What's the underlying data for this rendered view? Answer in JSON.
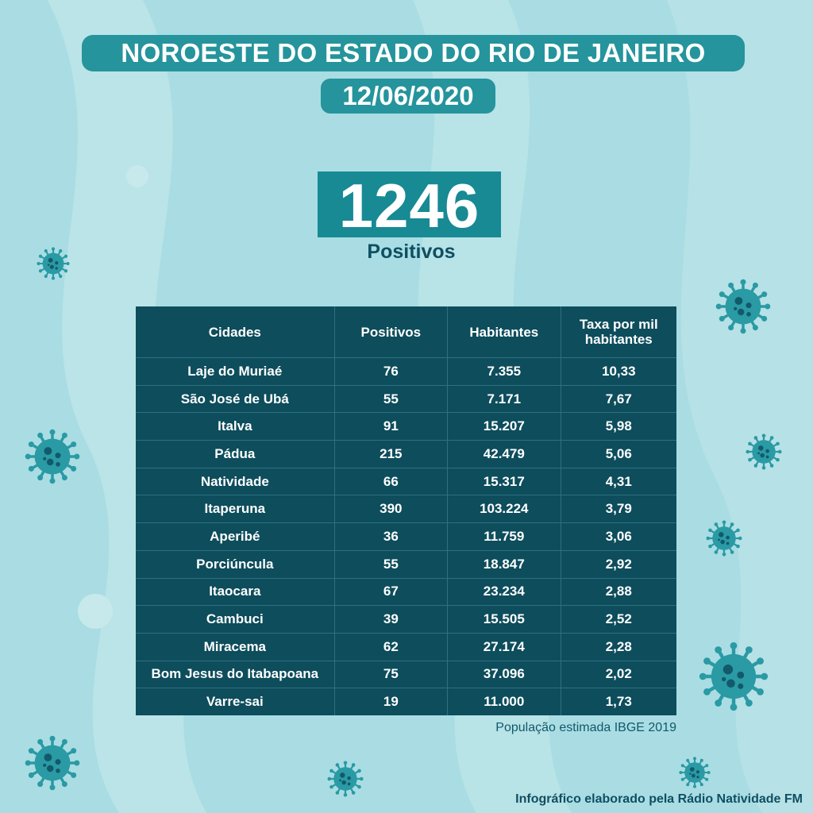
{
  "header": {
    "title": "NOROESTE DO ESTADO DO RIO DE JANEIRO",
    "date": "12/06/2020"
  },
  "summary": {
    "total": "1246",
    "label": "Positivos"
  },
  "table": {
    "headers": [
      "Cidades",
      "Positivos",
      "Habitantes",
      "Taxa por mil habitantes"
    ],
    "rows": [
      [
        "Laje do Muriaé",
        "76",
        "7.355",
        "10,33"
      ],
      [
        "São José de Ubá",
        "55",
        "7.171",
        "7,67"
      ],
      [
        "Italva",
        "91",
        "15.207",
        "5,98"
      ],
      [
        "Pádua",
        "215",
        "42.479",
        "5,06"
      ],
      [
        "Natividade",
        "66",
        "15.317",
        "4,31"
      ],
      [
        "Itaperuna",
        "390",
        "103.224",
        "3,79"
      ],
      [
        "Aperibé",
        "36",
        "11.759",
        "3,06"
      ],
      [
        "Porciúncula",
        "55",
        "18.847",
        "2,92"
      ],
      [
        "Itaocara",
        "67",
        "23.234",
        "2,88"
      ],
      [
        "Cambuci",
        "39",
        "15.505",
        "2,52"
      ],
      [
        "Miracema",
        "62",
        "27.174",
        "2,28"
      ],
      [
        "Bom Jesus do Itabapoana",
        "75",
        "37.096",
        "2,02"
      ],
      [
        "Varre-sai",
        "19",
        "11.000",
        "1,73"
      ]
    ]
  },
  "footer": {
    "source_note": "População estimada IBGE 2019",
    "credit": "Infográfico elaborado pela Rádio Natividade FM"
  },
  "colors": {
    "background": "#a9dde3",
    "pill": "#25949c",
    "table": "#0d4d5c",
    "virus": "#2a9aa4",
    "virus_spots": "#11596b"
  },
  "decorations": {
    "icon": "virus-icon"
  }
}
